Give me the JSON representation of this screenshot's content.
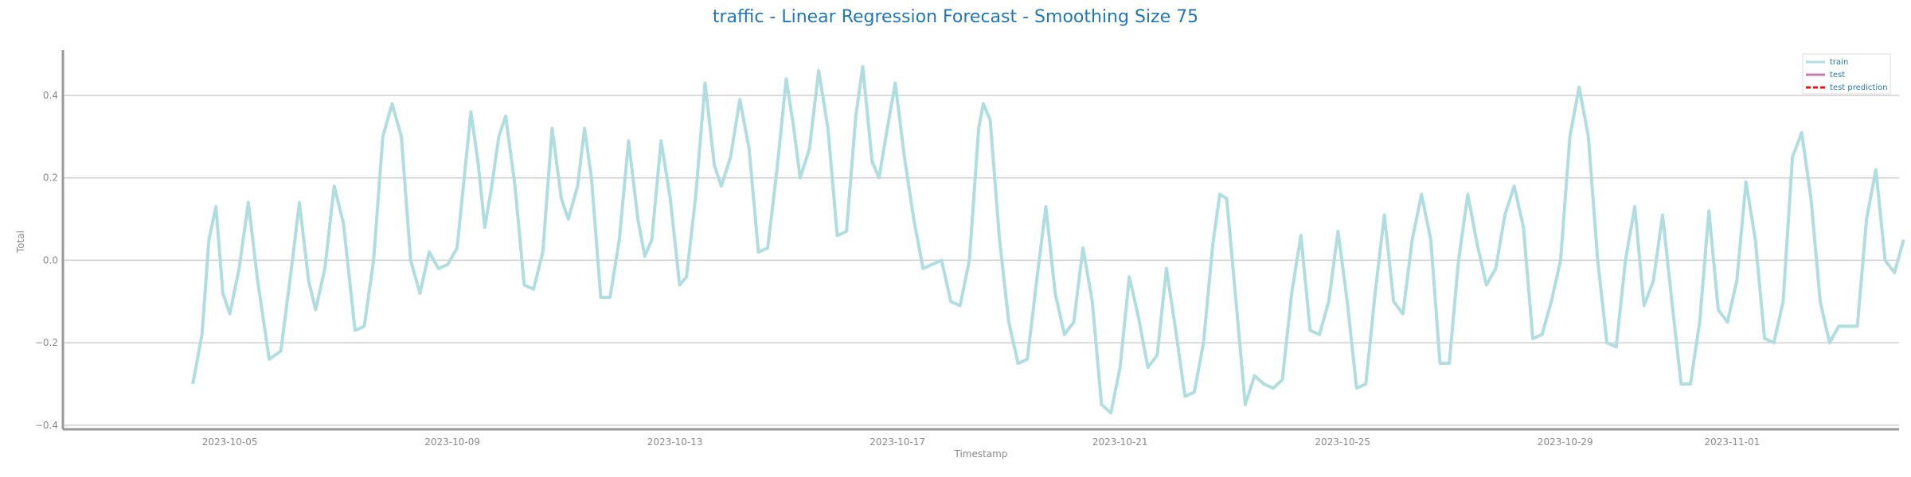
{
  "chart_data": {
    "type": "line",
    "title": "traffic - Linear Regression Forecast - Smoothing Size 75",
    "xlabel": "Timestamp",
    "ylabel": "Total",
    "xlim": [
      "2023-10-02T00:00",
      "2023-11-04T00:00"
    ],
    "ylim": [
      -0.41,
      0.51
    ],
    "x_ticks": [
      "2023-10-05",
      "2023-10-09",
      "2023-10-13",
      "2023-10-17",
      "2023-10-21",
      "2023-10-25",
      "2023-10-29",
      "2023-11-01"
    ],
    "y_ticks": [
      -0.4,
      -0.2,
      0.0,
      0.2,
      0.4
    ],
    "y_tick_labels": [
      "−0.4",
      "−0.2",
      "0.0",
      "0.2",
      "0.4"
    ],
    "grid": "horizontal",
    "legend_position": "top-right",
    "series": [
      {
        "name": "train",
        "color": "#b0dde0",
        "style": "solid",
        "points": [
          [
            "2023-10-04T08:00",
            -0.3
          ],
          [
            "2023-10-04T12:00",
            -0.18
          ],
          [
            "2023-10-04T15:00",
            0.05
          ],
          [
            "2023-10-04T18:00",
            0.13
          ],
          [
            "2023-10-04T21:00",
            -0.08
          ],
          [
            "2023-10-05T00:00",
            -0.13
          ],
          [
            "2023-10-05T04:00",
            -0.02
          ],
          [
            "2023-10-05T08:00",
            0.14
          ],
          [
            "2023-10-05T12:00",
            -0.05
          ],
          [
            "2023-10-05T17:00",
            -0.24
          ],
          [
            "2023-10-05T22:00",
            -0.22
          ],
          [
            "2023-10-06T03:00",
            0.0
          ],
          [
            "2023-10-06T06:00",
            0.14
          ],
          [
            "2023-10-06T10:00",
            -0.05
          ],
          [
            "2023-10-06T13:00",
            -0.12
          ],
          [
            "2023-10-06T17:00",
            -0.02
          ],
          [
            "2023-10-06T21:00",
            0.18
          ],
          [
            "2023-10-07T01:00",
            0.09
          ],
          [
            "2023-10-07T06:00",
            -0.17
          ],
          [
            "2023-10-07T10:00",
            -0.16
          ],
          [
            "2023-10-07T14:00",
            0.0
          ],
          [
            "2023-10-07T18:00",
            0.3
          ],
          [
            "2023-10-07T22:00",
            0.38
          ],
          [
            "2023-10-08T02:00",
            0.3
          ],
          [
            "2023-10-08T06:00",
            0.0
          ],
          [
            "2023-10-08T10:00",
            -0.08
          ],
          [
            "2023-10-08T14:00",
            0.02
          ],
          [
            "2023-10-08T18:00",
            -0.02
          ],
          [
            "2023-10-08T22:00",
            -0.01
          ],
          [
            "2023-10-09T02:00",
            0.03
          ],
          [
            "2023-10-09T06:00",
            0.25
          ],
          [
            "2023-10-09T08:00",
            0.36
          ],
          [
            "2023-10-09T11:00",
            0.24
          ],
          [
            "2023-10-09T14:00",
            0.08
          ],
          [
            "2023-10-09T17:00",
            0.18
          ],
          [
            "2023-10-09T20:00",
            0.3
          ],
          [
            "2023-10-09T23:00",
            0.35
          ],
          [
            "2023-10-10T03:00",
            0.18
          ],
          [
            "2023-10-10T07:00",
            -0.06
          ],
          [
            "2023-10-10T11:00",
            -0.07
          ],
          [
            "2023-10-10T15:00",
            0.02
          ],
          [
            "2023-10-10T19:00",
            0.32
          ],
          [
            "2023-10-10T23:00",
            0.15
          ],
          [
            "2023-10-11T02:00",
            0.1
          ],
          [
            "2023-10-11T06:00",
            0.18
          ],
          [
            "2023-10-11T09:00",
            0.32
          ],
          [
            "2023-10-11T12:00",
            0.2
          ],
          [
            "2023-10-11T16:00",
            -0.09
          ],
          [
            "2023-10-11T20:00",
            -0.09
          ],
          [
            "2023-10-12T00:00",
            0.05
          ],
          [
            "2023-10-12T04:00",
            0.29
          ],
          [
            "2023-10-12T08:00",
            0.1
          ],
          [
            "2023-10-12T11:00",
            0.01
          ],
          [
            "2023-10-12T14:00",
            0.05
          ],
          [
            "2023-10-12T18:00",
            0.29
          ],
          [
            "2023-10-12T22:00",
            0.15
          ],
          [
            "2023-10-13T02:00",
            -0.06
          ],
          [
            "2023-10-13T05:00",
            -0.04
          ],
          [
            "2023-10-13T09:00",
            0.16
          ],
          [
            "2023-10-13T13:00",
            0.43
          ],
          [
            "2023-10-13T17:00",
            0.23
          ],
          [
            "2023-10-13T20:00",
            0.18
          ],
          [
            "2023-10-14T00:00",
            0.25
          ],
          [
            "2023-10-14T04:00",
            0.39
          ],
          [
            "2023-10-14T08:00",
            0.27
          ],
          [
            "2023-10-14T12:00",
            0.02
          ],
          [
            "2023-10-14T16:00",
            0.03
          ],
          [
            "2023-10-14T20:00",
            0.22
          ],
          [
            "2023-10-15T00:00",
            0.44
          ],
          [
            "2023-10-15T03:00",
            0.33
          ],
          [
            "2023-10-15T06:00",
            0.2
          ],
          [
            "2023-10-15T10:00",
            0.27
          ],
          [
            "2023-10-15T14:00",
            0.46
          ],
          [
            "2023-10-15T18:00",
            0.32
          ],
          [
            "2023-10-15T22:00",
            0.06
          ],
          [
            "2023-10-16T02:00",
            0.07
          ],
          [
            "2023-10-16T06:00",
            0.35
          ],
          [
            "2023-10-16T09:00",
            0.47
          ],
          [
            "2023-10-16T13:00",
            0.24
          ],
          [
            "2023-10-16T16:00",
            0.2
          ],
          [
            "2023-10-16T19:00",
            0.3
          ],
          [
            "2023-10-16T23:00",
            0.43
          ],
          [
            "2023-10-17T03:00",
            0.25
          ],
          [
            "2023-10-17T07:00",
            0.1
          ],
          [
            "2023-10-17T11:00",
            -0.02
          ],
          [
            "2023-10-17T15:00",
            -0.01
          ],
          [
            "2023-10-17T19:00",
            0.0
          ],
          [
            "2023-10-17T23:00",
            -0.1
          ],
          [
            "2023-10-18T03:00",
            -0.11
          ],
          [
            "2023-10-18T07:00",
            0.0
          ],
          [
            "2023-10-18T11:00",
            0.32
          ],
          [
            "2023-10-18T13:00",
            0.38
          ],
          [
            "2023-10-18T16:00",
            0.34
          ],
          [
            "2023-10-18T20:00",
            0.05
          ],
          [
            "2023-10-19T00:00",
            -0.15
          ],
          [
            "2023-10-19T04:00",
            -0.25
          ],
          [
            "2023-10-19T08:00",
            -0.24
          ],
          [
            "2023-10-19T12:00",
            -0.05
          ],
          [
            "2023-10-19T16:00",
            0.13
          ],
          [
            "2023-10-19T20:00",
            -0.08
          ],
          [
            "2023-10-20T00:00",
            -0.18
          ],
          [
            "2023-10-20T04:00",
            -0.15
          ],
          [
            "2023-10-20T08:00",
            0.03
          ],
          [
            "2023-10-20T12:00",
            -0.1
          ],
          [
            "2023-10-20T16:00",
            -0.35
          ],
          [
            "2023-10-20T20:00",
            -0.37
          ],
          [
            "2023-10-21T00:00",
            -0.26
          ],
          [
            "2023-10-21T04:00",
            -0.04
          ],
          [
            "2023-10-21T08:00",
            -0.14
          ],
          [
            "2023-10-21T12:00",
            -0.26
          ],
          [
            "2023-10-21T16:00",
            -0.23
          ],
          [
            "2023-10-21T20:00",
            -0.02
          ],
          [
            "2023-10-22T00:00",
            -0.17
          ],
          [
            "2023-10-22T04:00",
            -0.33
          ],
          [
            "2023-10-22T08:00",
            -0.32
          ],
          [
            "2023-10-22T12:00",
            -0.2
          ],
          [
            "2023-10-22T16:00",
            0.04
          ],
          [
            "2023-10-22T19:00",
            0.16
          ],
          [
            "2023-10-22T22:00",
            0.15
          ],
          [
            "2023-10-23T02:00",
            -0.1
          ],
          [
            "2023-10-23T06:00",
            -0.35
          ],
          [
            "2023-10-23T10:00",
            -0.28
          ],
          [
            "2023-10-23T14:00",
            -0.3
          ],
          [
            "2023-10-23T18:00",
            -0.31
          ],
          [
            "2023-10-23T22:00",
            -0.29
          ],
          [
            "2023-10-24T02:00",
            -0.08
          ],
          [
            "2023-10-24T06:00",
            0.06
          ],
          [
            "2023-10-24T10:00",
            -0.17
          ],
          [
            "2023-10-24T14:00",
            -0.18
          ],
          [
            "2023-10-24T18:00",
            -0.1
          ],
          [
            "2023-10-24T22:00",
            0.07
          ],
          [
            "2023-10-25T02:00",
            -0.1
          ],
          [
            "2023-10-25T06:00",
            -0.31
          ],
          [
            "2023-10-25T10:00",
            -0.3
          ],
          [
            "2023-10-25T14:00",
            -0.08
          ],
          [
            "2023-10-25T18:00",
            0.11
          ],
          [
            "2023-10-25T22:00",
            -0.1
          ],
          [
            "2023-10-26T02:00",
            -0.13
          ],
          [
            "2023-10-26T06:00",
            0.05
          ],
          [
            "2023-10-26T10:00",
            0.16
          ],
          [
            "2023-10-26T14:00",
            0.05
          ],
          [
            "2023-10-26T18:00",
            -0.25
          ],
          [
            "2023-10-26T22:00",
            -0.25
          ],
          [
            "2023-10-27T02:00",
            0.0
          ],
          [
            "2023-10-27T06:00",
            0.16
          ],
          [
            "2023-10-27T10:00",
            0.04
          ],
          [
            "2023-10-27T14:00",
            -0.06
          ],
          [
            "2023-10-27T18:00",
            -0.02
          ],
          [
            "2023-10-27T22:00",
            0.11
          ],
          [
            "2023-10-28T02:00",
            0.18
          ],
          [
            "2023-10-28T06:00",
            0.08
          ],
          [
            "2023-10-28T10:00",
            -0.19
          ],
          [
            "2023-10-28T14:00",
            -0.18
          ],
          [
            "2023-10-28T18:00",
            -0.1
          ],
          [
            "2023-10-28T22:00",
            0.0
          ],
          [
            "2023-10-29T02:00",
            0.3
          ],
          [
            "2023-10-29T06:00",
            0.42
          ],
          [
            "2023-10-29T10:00",
            0.3
          ],
          [
            "2023-10-29T14:00",
            0.0
          ],
          [
            "2023-10-29T18:00",
            -0.2
          ],
          [
            "2023-10-29T22:00",
            -0.21
          ],
          [
            "2023-10-30T02:00",
            0.0
          ],
          [
            "2023-10-30T06:00",
            0.13
          ],
          [
            "2023-10-30T10:00",
            -0.11
          ],
          [
            "2023-10-30T14:00",
            -0.05
          ],
          [
            "2023-10-30T18:00",
            0.11
          ],
          [
            "2023-10-30T22:00",
            -0.1
          ],
          [
            "2023-10-31T02:00",
            -0.3
          ],
          [
            "2023-10-31T06:00",
            -0.3
          ],
          [
            "2023-10-31T10:00",
            -0.15
          ],
          [
            "2023-10-31T14:00",
            0.12
          ],
          [
            "2023-10-31T18:00",
            -0.12
          ],
          [
            "2023-10-31T22:00",
            -0.15
          ],
          [
            "2023-11-01T02:00",
            -0.05
          ],
          [
            "2023-11-01T06:00",
            0.19
          ],
          [
            "2023-11-01T10:00",
            0.05
          ],
          [
            "2023-11-01T14:00",
            -0.19
          ],
          [
            "2023-11-01T18:00",
            -0.2
          ],
          [
            "2023-11-01T22:00",
            -0.1
          ],
          [
            "2023-11-02T02:00",
            0.25
          ],
          [
            "2023-11-02T06:00",
            0.31
          ],
          [
            "2023-11-02T10:00",
            0.15
          ],
          [
            "2023-11-02T14:00",
            -0.1
          ],
          [
            "2023-11-02T18:00",
            -0.2
          ],
          [
            "2023-11-02T22:00",
            -0.16
          ],
          [
            "2023-11-03T02:00",
            -0.16
          ],
          [
            "2023-11-03T06:00",
            -0.16
          ],
          [
            "2023-11-03T10:00",
            0.1
          ],
          [
            "2023-11-03T14:00",
            0.22
          ],
          [
            "2023-11-03T18:00",
            0.0
          ],
          [
            "2023-11-03T22:00",
            -0.03
          ],
          [
            "2023-11-04T02:00",
            0.05
          ]
        ]
      },
      {
        "name": "test",
        "color": "#c87bb2",
        "style": "solid",
        "points": []
      },
      {
        "name": "test prediction",
        "color": "#ee1111",
        "style": "dashed",
        "points": []
      }
    ]
  }
}
